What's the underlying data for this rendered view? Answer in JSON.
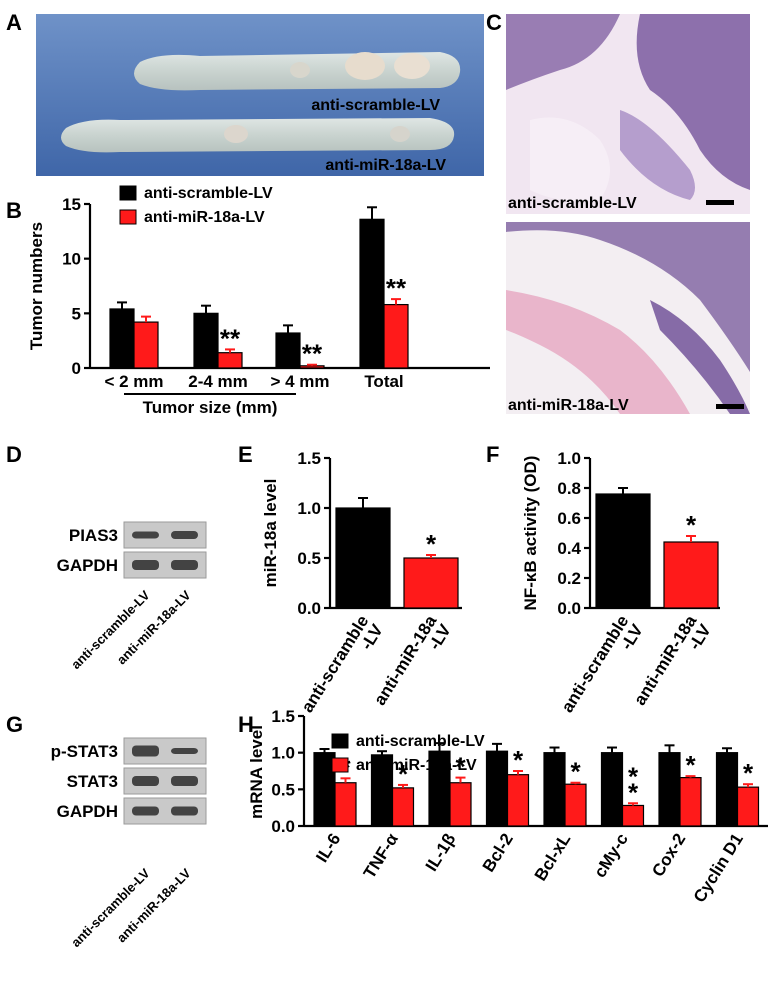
{
  "panels": {
    "A": {
      "letter": "A",
      "label_top": "anti-scramble-LV",
      "label_bottom": "anti-miR-18a-LV"
    },
    "C": {
      "letter": "C",
      "label_top": "anti-scramble-LV",
      "label_bottom": "anti-miR-18a-LV"
    },
    "D": {
      "letter": "D",
      "bands": [
        "PIAS3",
        "GAPDH"
      ],
      "lanes": [
        "anti-scramble-LV",
        "anti-miR-18a-LV"
      ]
    },
    "G": {
      "letter": "G",
      "bands": [
        "p-STAT3",
        "STAT3",
        "GAPDH"
      ],
      "lanes": [
        "anti-scramble-LV",
        "anti-miR-18a-LV"
      ]
    }
  },
  "colors": {
    "control": "#000000",
    "treatment": "#ff1a1a",
    "photo_bg": "#4f78b8",
    "histo_bg": "#efe4ef"
  },
  "chart_data": [
    {
      "panel": "B",
      "type": "bar",
      "ylabel": "Tumor numbers",
      "xlabel": "Tumor size (mm)",
      "ylim": [
        0,
        15
      ],
      "yticks": [
        "0",
        "5",
        "10",
        "15"
      ],
      "categories": [
        "< 2 mm",
        "2-4 mm",
        "> 4 mm",
        "Total"
      ],
      "series": [
        {
          "name": "anti-scramble-LV",
          "values": [
            5.4,
            5.0,
            3.2,
            13.6
          ],
          "errors": [
            0.6,
            0.7,
            0.7,
            1.1
          ]
        },
        {
          "name": "anti-miR-18a-LV",
          "values": [
            4.2,
            1.4,
            0.2,
            5.8
          ],
          "errors": [
            0.5,
            0.3,
            0.1,
            0.5
          ]
        }
      ],
      "annotations": [
        "",
        "**",
        "**",
        "**"
      ]
    },
    {
      "panel": "E",
      "type": "bar",
      "ylabel": "miR-18a level",
      "ylim": [
        0,
        1.5
      ],
      "yticks": [
        "0.0",
        "0.5",
        "1.0",
        "1.5"
      ],
      "categories": [
        "anti-scramble-LV",
        "anti-miR-18a-LV"
      ],
      "category_labels": [
        [
          "anti-scramble",
          "-LV"
        ],
        [
          "anti-miR-18a",
          "-LV"
        ]
      ],
      "values": [
        1.0,
        0.5
      ],
      "errors": [
        0.1,
        0.03
      ],
      "annotations": [
        "",
        "*"
      ]
    },
    {
      "panel": "F",
      "type": "bar",
      "ylabel": "NF-κB activity (OD)",
      "ylim": [
        0,
        1.0
      ],
      "yticks": [
        "0.0",
        "0.2",
        "0.4",
        "0.6",
        "0.8",
        "1.0"
      ],
      "categories": [
        "anti-scramble-LV",
        "anti-miR-18a-LV"
      ],
      "category_labels": [
        [
          "anti-scramble",
          "-LV"
        ],
        [
          "anti-miR-18a",
          "-LV"
        ]
      ],
      "values": [
        0.76,
        0.44
      ],
      "errors": [
        0.04,
        0.04
      ],
      "annotations": [
        "",
        "*"
      ]
    },
    {
      "panel": "H",
      "type": "bar",
      "ylabel": "mRNA level",
      "ylim": [
        0,
        1.5
      ],
      "yticks": [
        "0.0",
        "0.5",
        "1.0",
        "1.5"
      ],
      "categories": [
        "IL-6",
        "TNF-α",
        "IL-1β",
        "Bcl-2",
        "Bcl-xL",
        "cMy-c",
        "Cox-2",
        "Cyclin D1"
      ],
      "series": [
        {
          "name": "anti-scramble-LV",
          "values": [
            1.0,
            0.97,
            1.02,
            1.02,
            1.0,
            1.0,
            1.0,
            1.0
          ],
          "errors": [
            0.05,
            0.05,
            0.11,
            0.1,
            0.07,
            0.07,
            0.1,
            0.06
          ]
        },
        {
          "name": "anti-miR-18a-LV",
          "values": [
            0.59,
            0.52,
            0.59,
            0.7,
            0.57,
            0.28,
            0.66,
            0.53
          ],
          "errors": [
            0.06,
            0.04,
            0.07,
            0.05,
            0.02,
            0.03,
            0.02,
            0.04
          ]
        }
      ],
      "annotations": [
        "*",
        "*",
        "*",
        "*",
        "*",
        "**",
        "*",
        "*"
      ]
    }
  ]
}
